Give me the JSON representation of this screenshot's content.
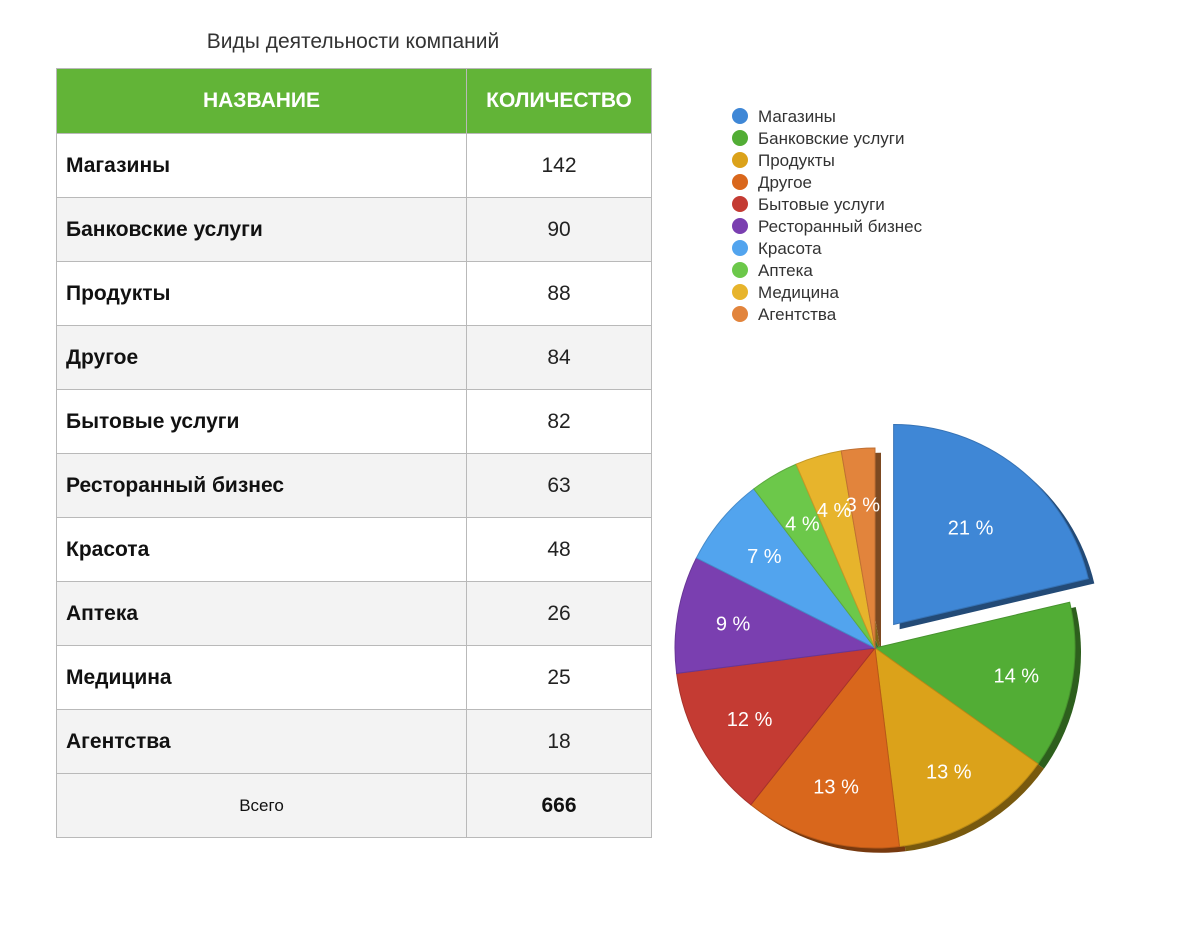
{
  "title": "Виды деятельности компаний",
  "table": {
    "headers": [
      "НАЗВАНИЕ",
      "КОЛИЧЕСТВО"
    ],
    "rows": [
      {
        "name": "Магазины",
        "value": "142"
      },
      {
        "name": "Банковские услуги",
        "value": "90"
      },
      {
        "name": "Продукты",
        "value": "88"
      },
      {
        "name": "Другое",
        "value": "84"
      },
      {
        "name": "Бытовые услуги",
        "value": "82"
      },
      {
        "name": "Ресторанный бизнес",
        "value": "63"
      },
      {
        "name": "Красота",
        "value": "48"
      },
      {
        "name": "Аптека",
        "value": "26"
      },
      {
        "name": "Медицина",
        "value": "25"
      },
      {
        "name": "Агентства",
        "value": "18"
      }
    ],
    "total_label": "Всего",
    "total_value": "666"
  },
  "chart_data": {
    "type": "pie",
    "categories": [
      "Магазины",
      "Банковские услуги",
      "Продукты",
      "Другое",
      "Бытовые услуги",
      "Ресторанный бизнес",
      "Красота",
      "Аптека",
      "Медицина",
      "Агентства"
    ],
    "values": [
      142,
      90,
      88,
      84,
      82,
      63,
      48,
      26,
      25,
      18
    ],
    "labels": [
      "21 %",
      "14 %",
      "13 %",
      "13 %",
      "12 %",
      "9 %",
      "7 %",
      "4 %",
      "4 %",
      "3 %"
    ],
    "colors": [
      "#3f87d6",
      "#52ad35",
      "#dba21a",
      "#d9671c",
      "#c43b33",
      "#7a3fb0",
      "#52a4ee",
      "#6cc84a",
      "#e7b42c",
      "#e2843c"
    ],
    "exploded": "Магазины",
    "legend_position": "top-right"
  }
}
